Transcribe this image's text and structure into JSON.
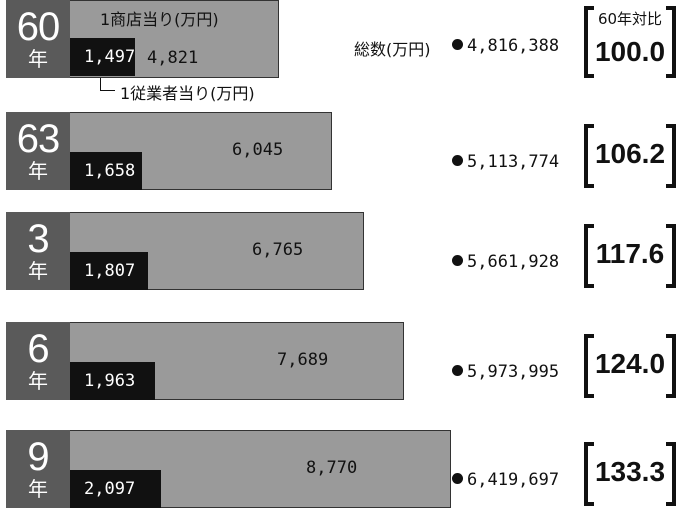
{
  "chart_data": {
    "type": "bar",
    "labels": {
      "per_store": "1商店当り(万円)",
      "per_employee": "1従業者当り(万円)",
      "total": "総数(万円)",
      "index_header": "60年対比"
    },
    "year_unit": "年",
    "rows": [
      {
        "year": "60",
        "per_store": 4821,
        "per_store_text": "4,821",
        "per_employee": 1497,
        "per_employee_text": "1,497",
        "total_text": "4,816,388",
        "index_text": "100.0"
      },
      {
        "year": "63",
        "per_store": 6045,
        "per_store_text": "6,045",
        "per_employee": 1658,
        "per_employee_text": "1,658",
        "total_text": "5,113,774",
        "index_text": "106.2"
      },
      {
        "year": "3",
        "per_store": 6765,
        "per_store_text": "6,765",
        "per_employee": 1807,
        "per_employee_text": "1,807",
        "total_text": "5,661,928",
        "index_text": "117.6"
      },
      {
        "year": "6",
        "per_store": 7689,
        "per_store_text": "7,689",
        "per_employee": 1963,
        "per_employee_text": "1,963",
        "total_text": "5,973,995",
        "index_text": "124.0"
      },
      {
        "year": "9",
        "per_store": 8770,
        "per_store_text": "8,770",
        "per_employee": 2097,
        "per_employee_text": "2,097",
        "total_text": "6,419,697",
        "index_text": "133.3"
      }
    ],
    "colors": {
      "year_box": "#5a5a5a",
      "store_bar": "#9a9a9a",
      "employee_bar": "#111111"
    }
  }
}
